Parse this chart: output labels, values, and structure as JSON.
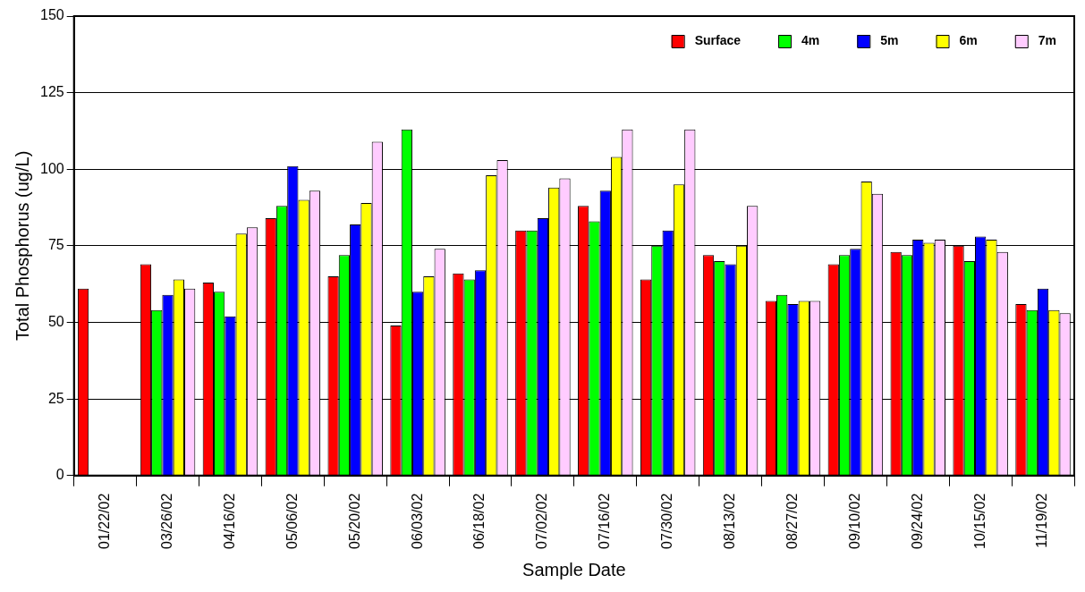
{
  "chart_data": {
    "type": "bar",
    "xlabel": "Sample Date",
    "ylabel": "Total Phosphorus (ug/L)",
    "categories": [
      "01/22/02",
      "03/26/02",
      "04/16/02",
      "05/06/02",
      "05/20/02",
      "06/03/02",
      "06/18/02",
      "07/02/02",
      "07/16/02",
      "07/30/02",
      "08/13/02",
      "08/27/02",
      "09/10/02",
      "09/24/02",
      "10/15/02",
      "11/19/02"
    ],
    "series": [
      {
        "name": "Surface",
        "color": "#ff0000",
        "values": [
          61,
          69,
          63,
          84,
          65,
          49,
          66,
          80,
          88,
          64,
          72,
          57,
          69,
          73,
          75,
          56
        ]
      },
      {
        "name": "4m",
        "color": "#00ff00",
        "values": [
          null,
          54,
          60,
          88,
          72,
          113,
          64,
          80,
          83,
          75,
          70,
          59,
          72,
          72,
          70,
          54
        ]
      },
      {
        "name": "5m",
        "color": "#0000ff",
        "values": [
          null,
          59,
          52,
          101,
          82,
          60,
          67,
          84,
          93,
          80,
          69,
          56,
          74,
          77,
          78,
          61
        ]
      },
      {
        "name": "6m",
        "color": "#ffff00",
        "values": [
          null,
          64,
          79,
          90,
          89,
          65,
          98,
          94,
          104,
          95,
          75,
          57,
          96,
          76,
          77,
          54
        ]
      },
      {
        "name": "7m",
        "color": "#ffccff",
        "values": [
          null,
          61,
          81,
          93,
          109,
          74,
          103,
          97,
          113,
          113,
          88,
          57,
          92,
          77,
          73,
          53
        ]
      }
    ],
    "ylim": [
      0,
      150
    ],
    "yticks": [
      0,
      25,
      50,
      75,
      100,
      125,
      150
    ],
    "grid": "y",
    "legend": "top right"
  }
}
